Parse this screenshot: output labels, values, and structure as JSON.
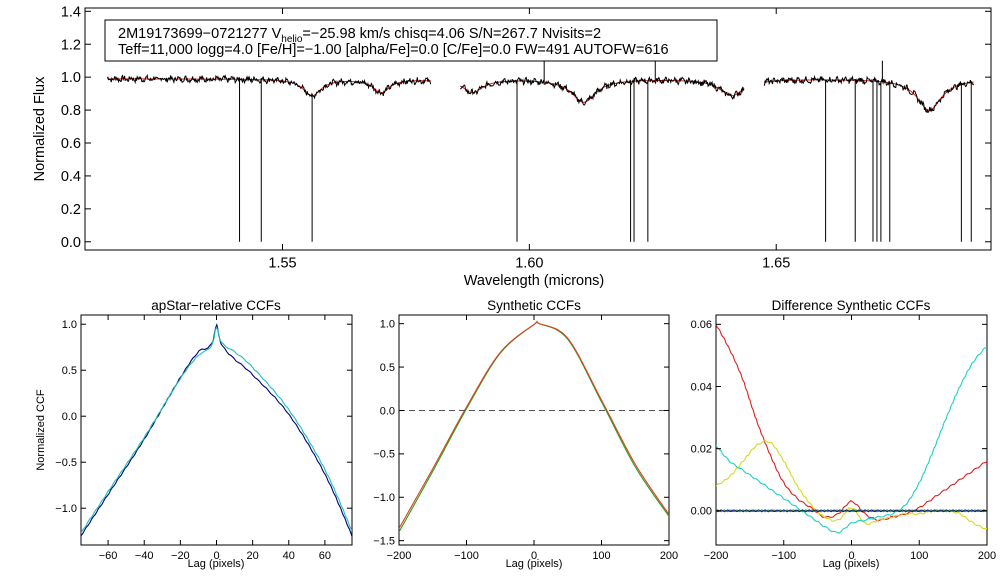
{
  "chart_data": [
    {
      "type": "line",
      "id": "spectrum",
      "header": {
        "line1": "2M19173699−0721277  V",
        "sub_helio": "helio",
        "line1_rest": "=−25.98 km/s  chisq=4.06  S/N=267.7  Nvisits=2",
        "line2": "Teff=11,000 logg=4.0 [Fe/H]=−1.00 [alpha/Fe]=0.0 [C/Fe]=0.0 FW=491 AUTOFW=616"
      },
      "xlabel": "Wavelength (microns)",
      "ylabel": "Normalized Flux",
      "xlim": [
        1.51,
        1.6935
      ],
      "ylim": [
        -0.05,
        1.42
      ],
      "x_ticks": [
        1.55,
        1.6,
        1.65
      ],
      "x_tick_labels": [
        "1.55",
        "1.60",
        "1.65"
      ],
      "y_ticks": [
        0.0,
        0.2,
        0.4,
        0.6,
        0.8,
        1.0,
        1.2,
        1.4
      ],
      "y_tick_labels": [
        "0.0",
        "0.2",
        "0.4",
        "0.6",
        "0.8",
        "1.0",
        "1.2",
        "1.4"
      ],
      "chips": [
        [
          1.5145,
          1.58
        ],
        [
          1.586,
          1.6435
        ],
        [
          1.6475,
          1.69
        ]
      ],
      "continuum": 0.99,
      "lines": [
        {
          "center": 1.556,
          "depth": 0.1,
          "width": 0.0022
        },
        {
          "center": 1.57,
          "depth": 0.08,
          "width": 0.002
        },
        {
          "center": 1.5885,
          "depth": 0.08,
          "width": 0.0025
        },
        {
          "center": 1.611,
          "depth": 0.14,
          "width": 0.003
        },
        {
          "center": 1.641,
          "depth": 0.1,
          "width": 0.003
        },
        {
          "center": 1.681,
          "depth": 0.19,
          "width": 0.003
        }
      ],
      "bad_pixels": [
        {
          "x": 1.5413,
          "y": 0.0
        },
        {
          "x": 1.5457,
          "y": 0.0
        },
        {
          "x": 1.556,
          "y": 0.0
        },
        {
          "x": 1.5975,
          "y": 0.0
        },
        {
          "x": 1.6205,
          "y": 0.0
        },
        {
          "x": 1.6212,
          "y": 0.0
        },
        {
          "x": 1.624,
          "y": 0.0
        },
        {
          "x": 1.66,
          "y": 0.0
        },
        {
          "x": 1.666,
          "y": 0.0
        },
        {
          "x": 1.6696,
          "y": 0.0
        },
        {
          "x": 1.6704,
          "y": 0.0
        },
        {
          "x": 1.6712,
          "y": 0.0
        },
        {
          "x": 1.673,
          "y": 0.0
        },
        {
          "x": 1.6875,
          "y": 0.0
        },
        {
          "x": 1.6895,
          "y": 0.0
        }
      ],
      "spikes": [
        {
          "x": 1.603,
          "y": 1.12
        },
        {
          "x": 1.6255,
          "y": 1.13
        },
        {
          "x": 1.6715,
          "y": 1.1
        }
      ],
      "series": [
        {
          "name": "observed",
          "color": "#000000"
        },
        {
          "name": "model",
          "color": "#e02020"
        }
      ]
    },
    {
      "type": "line",
      "id": "apstar_ccf",
      "title": "apStar−relative CCFs",
      "xlabel": "Lag (pixels)",
      "ylabel": "Normalized CCF",
      "xlim": [
        -75,
        75
      ],
      "ylim": [
        -1.4,
        1.1
      ],
      "x_ticks": [
        -60,
        -40,
        -20,
        0,
        20,
        40,
        60
      ],
      "x_tick_labels": [
        "−60",
        "−40",
        "−20",
        "0",
        "20",
        "40",
        "60"
      ],
      "y_ticks": [
        -1.0,
        -0.5,
        0.0,
        0.5,
        1.0
      ],
      "y_tick_labels": [
        "−1.0",
        "−0.5",
        "0.0",
        "0.5",
        "1.0"
      ],
      "series": [
        {
          "name": "ccf-1",
          "color": "#000080",
          "x": [
            -75,
            -60,
            -40,
            -20,
            -10,
            -5,
            -2,
            0,
            2,
            5,
            10,
            20,
            40,
            60,
            75
          ],
          "y": [
            -1.3,
            -0.85,
            -0.25,
            0.42,
            0.7,
            0.74,
            0.82,
            0.99,
            0.82,
            0.72,
            0.62,
            0.45,
            0.02,
            -0.63,
            -1.3
          ]
        },
        {
          "name": "ccf-2",
          "color": "#20c0b0",
          "x": [
            -75,
            -60,
            -40,
            -20,
            -10,
            -5,
            -2,
            0,
            2,
            5,
            10,
            20,
            40,
            60,
            75
          ],
          "y": [
            -1.27,
            -0.82,
            -0.23,
            0.41,
            0.66,
            0.72,
            0.8,
            0.97,
            0.83,
            0.76,
            0.7,
            0.53,
            0.07,
            -0.58,
            -1.25
          ]
        }
      ]
    },
    {
      "type": "line",
      "id": "synthetic_ccf",
      "title": "Synthetic CCFs",
      "xlabel": "Lag (pixels)",
      "xlim": [
        -200,
        200
      ],
      "ylim": [
        -1.55,
        1.1
      ],
      "x_ticks": [
        -200,
        -100,
        0,
        100,
        200
      ],
      "x_tick_labels": [
        "−200",
        "−100",
        "0",
        "100",
        "200"
      ],
      "y_ticks": [
        -1.5,
        -1.0,
        -0.5,
        0.0,
        0.5,
        1.0
      ],
      "y_tick_labels": [
        "−1.5",
        "−1.0",
        "−0.5",
        "0.0",
        "0.5",
        "1.0"
      ],
      "zero_line": 0.0,
      "series": [
        {
          "name": "synth-green",
          "color": "#20a020",
          "x": [
            -200,
            -150,
            -100,
            -50,
            0,
            8,
            50,
            100,
            150,
            200
          ],
          "y": [
            -1.4,
            -0.7,
            0.02,
            0.66,
            0.99,
            1.0,
            0.82,
            0.1,
            -0.65,
            -1.22
          ]
        },
        {
          "name": "synth-red",
          "color": "#e04020",
          "x": [
            -200,
            -150,
            -100,
            -50,
            0,
            8,
            50,
            100,
            150,
            200
          ],
          "y": [
            -1.36,
            -0.67,
            0.04,
            0.67,
            0.99,
            1.0,
            0.83,
            0.12,
            -0.62,
            -1.2
          ]
        }
      ]
    },
    {
      "type": "line",
      "id": "difference_ccf",
      "title": "Difference Synthetic CCFs",
      "xlabel": "Lag (pixels)",
      "xlim": [
        -200,
        200
      ],
      "ylim": [
        -0.011,
        0.063
      ],
      "x_ticks": [
        -200,
        -100,
        0,
        100,
        200
      ],
      "x_tick_labels": [
        "−200",
        "−100",
        "0",
        "100",
        "200"
      ],
      "y_ticks": [
        0.0,
        0.02,
        0.04,
        0.06
      ],
      "y_tick_labels": [
        "0.00",
        "0.02",
        "0.04",
        "0.06"
      ],
      "series": [
        {
          "name": "diff-red",
          "color": "#e02020",
          "x": [
            -200,
            -180,
            -160,
            -140,
            -120,
            -100,
            -80,
            -60,
            -40,
            -20,
            0,
            20,
            40,
            60,
            80,
            100,
            120,
            140,
            160,
            180,
            200
          ],
          "y": [
            0.06,
            0.052,
            0.042,
            0.029,
            0.018,
            0.009,
            0.004,
            0.001,
            -0.002,
            -0.001,
            0.003,
            -0.001,
            -0.003,
            -0.002,
            -0.001,
            0.001,
            0.004,
            0.007,
            0.01,
            0.013,
            0.016
          ]
        },
        {
          "name": "diff-yellow",
          "color": "#d8d820",
          "x": [
            -200,
            -180,
            -160,
            -140,
            -120,
            -100,
            -80,
            -60,
            -40,
            -20,
            0,
            20,
            40,
            60,
            80,
            100,
            120,
            140,
            160,
            180,
            200
          ],
          "y": [
            0.008,
            0.011,
            0.016,
            0.021,
            0.022,
            0.016,
            0.008,
            0.002,
            -0.002,
            -0.003,
            0.001,
            -0.004,
            -0.003,
            -0.002,
            -0.001,
            -0.001,
            0.0,
            0.0,
            -0.001,
            -0.004,
            -0.006
          ]
        },
        {
          "name": "diff-cyan",
          "color": "#20d0c0",
          "x": [
            -200,
            -180,
            -160,
            -140,
            -120,
            -100,
            -80,
            -60,
            -40,
            -20,
            0,
            20,
            40,
            60,
            80,
            100,
            120,
            140,
            160,
            180,
            200
          ],
          "y": [
            0.021,
            0.016,
            0.013,
            0.01,
            0.007,
            0.004,
            0.001,
            -0.002,
            -0.005,
            -0.007,
            -0.004,
            -0.003,
            -0.002,
            -0.001,
            0.002,
            0.009,
            0.019,
            0.03,
            0.04,
            0.048,
            0.053
          ]
        },
        {
          "name": "diff-green",
          "color": "#20a020",
          "x": [
            -200,
            200
          ],
          "y": [
            0.0,
            0.0
          ]
        },
        {
          "name": "diff-blue",
          "color": "#1a1a80",
          "x": [
            -200,
            200
          ],
          "y": [
            0.0,
            0.0
          ]
        }
      ]
    }
  ]
}
